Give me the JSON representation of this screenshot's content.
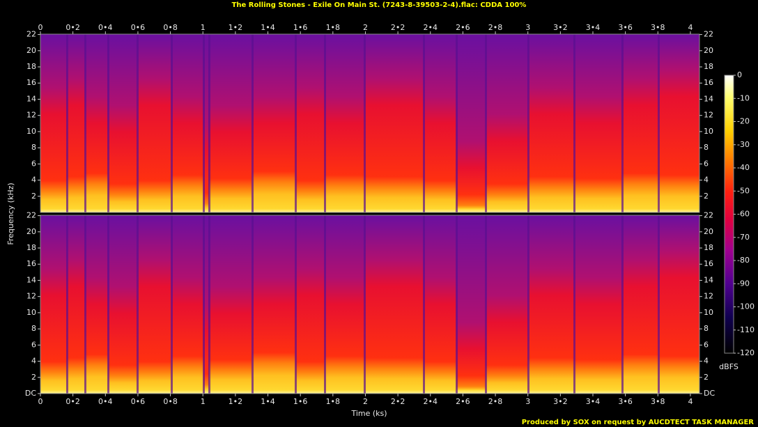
{
  "chart_data": {
    "type": "spectrogram",
    "title": "The Rolling Stones - Exile On Main St. (7243-8-39503-2-4).flac: CDDA 100%",
    "xlabel": "Time (ks)",
    "ylabel": "Frequency (kHz)",
    "xlim": [
      0,
      4.056
    ],
    "xticks": [
      0,
      {
        "value": 0.2,
        "label": "0•2"
      },
      {
        "value": 0.4,
        "label": "0•4"
      },
      {
        "value": 0.6,
        "label": "0•6"
      },
      {
        "value": 0.8,
        "label": "0•8"
      },
      1,
      {
        "value": 1.2,
        "label": "1•2"
      },
      {
        "value": 1.4,
        "label": "1•4"
      },
      {
        "value": 1.6,
        "label": "1•6"
      },
      {
        "value": 1.8,
        "label": "1•8"
      },
      2,
      {
        "value": 2.2,
        "label": "2•2"
      },
      {
        "value": 2.4,
        "label": "2•4"
      },
      {
        "value": 2.6,
        "label": "2•6"
      },
      {
        "value": 2.8,
        "label": "2•8"
      },
      3,
      {
        "value": 3.2,
        "label": "3•2"
      },
      {
        "value": 3.4,
        "label": "3•4"
      },
      {
        "value": 3.6,
        "label": "3•6"
      },
      {
        "value": 3.8,
        "label": "3•8"
      },
      4
    ],
    "ylim": [
      0,
      22.05
    ],
    "channels": [
      {
        "yticks": [
          2,
          4,
          6,
          8,
          10,
          12,
          14,
          16,
          18,
          20,
          22
        ]
      },
      {
        "yticks": [
          {
            "value": 0,
            "label": "DC"
          },
          2,
          4,
          6,
          8,
          10,
          12,
          14,
          16,
          18,
          20,
          22
        ]
      }
    ],
    "colorbar": {
      "label": "dBFS",
      "lim": [
        -120,
        0
      ],
      "ticks": [
        0,
        -10,
        -20,
        -30,
        -40,
        -50,
        -60,
        -70,
        -80,
        -90,
        -100,
        -110,
        -120
      ]
    },
    "footer": "Produced by SOX on request by AUCDTECT TASK MANAGER"
  }
}
